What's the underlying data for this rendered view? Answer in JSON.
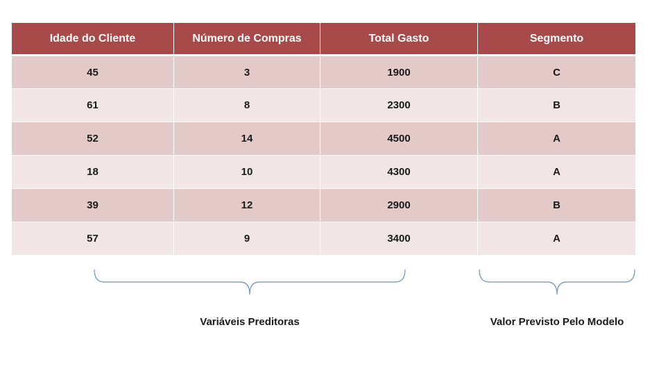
{
  "colors": {
    "header_bg": "#a84a4a",
    "row_odd": "#e4c9c9",
    "row_even": "#f1e5e5",
    "brace": "#6f8fb8"
  },
  "table": {
    "columns": [
      "Idade do Cliente",
      "Número de Compras",
      "Total Gasto",
      "Segmento"
    ],
    "rows": [
      [
        "45",
        "3",
        "1900",
        "C"
      ],
      [
        "61",
        "8",
        "2300",
        "B"
      ],
      [
        "52",
        "14",
        "4500",
        "A"
      ],
      [
        "18",
        "10",
        "4300",
        "A"
      ],
      [
        "39",
        "12",
        "2900",
        "B"
      ],
      [
        "57",
        "9",
        "3400",
        "A"
      ]
    ]
  },
  "annotations": {
    "predictors_label": "Variáveis Preditoras",
    "target_label": "Valor Previsto Pelo Modelo"
  }
}
